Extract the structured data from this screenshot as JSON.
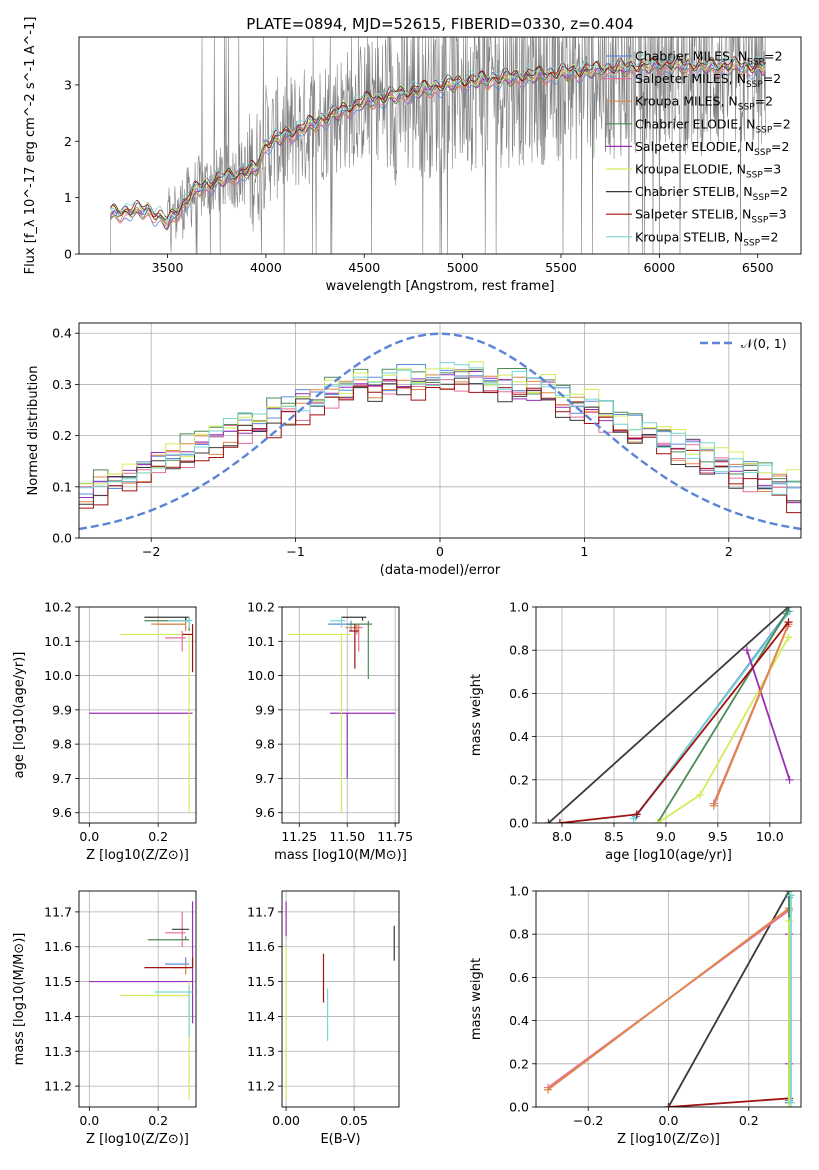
{
  "figure_title": "PLATE=0894, MJD=52615, FIBERID=0330, z=0.404",
  "colors": {
    "Chabrier MILES": "#5b8ddb",
    "Salpeter MILES": "#e86f9a",
    "Kroupa MILES": "#dd8844",
    "Chabrier ELODIE": "#4f8a55",
    "Salpeter ELODIE": "#9a2fb5",
    "Kroupa ELODIE": "#d3ec5a",
    "Chabrier STELIB": "#3a3a3a",
    "Salpeter STELIB": "#a01111",
    "Kroupa STELIB": "#76d6d4",
    "data": "#808080",
    "normal": "#5b84d6",
    "grid": "#b0b0b0"
  },
  "chart_data": [
    {
      "id": "spectrum",
      "type": "line",
      "title": "PLATE=0894, MJD=52615, FIBERID=0330, z=0.404",
      "xlabel": "wavelength [Angstrom, rest frame]",
      "ylabel": "Flux [f_λ 10^-17 erg cm^-2 s^-1 A^-1]",
      "xlim": [
        3050,
        6720
      ],
      "ylim": [
        0,
        3.85
      ],
      "xticks": [
        3500,
        4000,
        4500,
        5000,
        5500,
        6000,
        6500
      ],
      "yticks": [
        0,
        1,
        2,
        3
      ],
      "grid": false,
      "legend_position": "top-right",
      "data_range": [
        3210,
        6540
      ],
      "series": [
        {
          "name": "Chabrier MILES, N_SSP=2",
          "lab": "Chabrier MILES, N",
          "n": "2"
        },
        {
          "name": "Salpeter MILES, N_SSP=2",
          "lab": "Salpeter MILES, N",
          "n": "2"
        },
        {
          "name": "Kroupa MILES, N_SSP=2",
          "lab": "Kroupa MILES, N",
          "n": "2"
        },
        {
          "name": "Chabrier ELODIE, N_SSP=2",
          "lab": "Chabrier ELODIE, N",
          "n": "2"
        },
        {
          "name": "Salpeter ELODIE, N_SSP=2",
          "lab": "Salpeter ELODIE, N",
          "n": "2"
        },
        {
          "name": "Kroupa ELODIE, N_SSP=3",
          "lab": "Kroupa ELODIE, N",
          "n": "3"
        },
        {
          "name": "Chabrier STELIB, N_SSP=2",
          "lab": "Chabrier STELIB, N",
          "n": "2"
        },
        {
          "name": "Salpeter STELIB, N_SSP=3",
          "lab": "Salpeter STELIB, N",
          "n": "3"
        },
        {
          "name": "Kroupa STELIB, N_SSP=2",
          "lab": "Kroupa STELIB, N",
          "n": "2"
        }
      ],
      "model_continuum": [
        [
          3210,
          0.72
        ],
        [
          3400,
          0.78
        ],
        [
          3500,
          0.55
        ],
        [
          3600,
          0.95
        ],
        [
          3650,
          1.15
        ],
        [
          3800,
          1.35
        ],
        [
          3950,
          1.5
        ],
        [
          4000,
          1.95
        ],
        [
          4200,
          2.25
        ],
        [
          4500,
          2.7
        ],
        [
          5000,
          3.05
        ],
        [
          5500,
          3.2
        ],
        [
          6000,
          3.35
        ],
        [
          6540,
          3.3
        ]
      ]
    },
    {
      "id": "residuals",
      "type": "area",
      "xlabel": "(data-model)/error",
      "ylabel": "Normed distribution",
      "xlim": [
        -2.5,
        2.5
      ],
      "ylim": [
        0,
        0.42
      ],
      "xticks": [
        -2,
        -1,
        0,
        1,
        2
      ],
      "yticks": [
        0.0,
        0.1,
        0.2,
        0.3,
        0.4
      ],
      "grid": true,
      "legend_position": "top-right",
      "legend_label": "𝒩(0, 1)",
      "bin_width": 0.1,
      "series_base_amplitude": 0.31,
      "series_offsets": [
        0.01,
        -0.005,
        0.0,
        0.015,
        0.005,
        0.02,
        -0.01,
        -0.015,
        0.012
      ]
    },
    {
      "id": "age_vs_Z",
      "type": "scatter",
      "xlabel": "Z [log10(Z/Z⊙)]",
      "ylabel": "age  [log10(age/yr)]",
      "xlim": [
        -0.03,
        0.31
      ],
      "ylim": [
        9.57,
        10.2
      ],
      "xticks": [
        0.0,
        0.2
      ],
      "yticks": [
        9.6,
        9.7,
        9.8,
        9.9,
        10.0,
        10.1,
        10.2
      ],
      "grid": true,
      "errorbars": [
        {
          "series": 0,
          "x": 0.28,
          "xerr": [
            0.08,
            0.0
          ],
          "y": 10.15,
          "yerr": [
            0.0,
            0.02
          ]
        },
        {
          "series": 1,
          "x": 0.27,
          "xerr": [
            0.05,
            0.01
          ],
          "y": 10.11,
          "yerr": [
            0.04,
            0.02
          ]
        },
        {
          "series": 2,
          "x": 0.28,
          "xerr": [
            0.1,
            0.0
          ],
          "y": 10.15,
          "yerr": [
            0.02,
            0.01
          ]
        },
        {
          "series": 3,
          "x": 0.29,
          "xerr": [
            0.13,
            0.0
          ],
          "y": 10.16,
          "yerr": [
            0.03,
            0.01
          ]
        },
        {
          "series": 4,
          "x": 0.0,
          "xerr": [
            0.0,
            0.3
          ],
          "y": 9.89,
          "yerr": [
            0.0,
            0.0
          ]
        },
        {
          "series": 5,
          "x": 0.29,
          "xerr": [
            0.2,
            0.0
          ],
          "y": 10.12,
          "yerr": [
            0.52,
            0.0
          ]
        },
        {
          "series": 6,
          "x": 0.28,
          "xerr": [
            0.12,
            0.01
          ],
          "y": 10.17,
          "yerr": [
            0.01,
            0.0
          ]
        },
        {
          "series": 7,
          "x": 0.3,
          "xerr": [
            0.03,
            0.0
          ],
          "y": 10.12,
          "yerr": [
            0.11,
            0.03
          ]
        },
        {
          "series": 8,
          "x": 0.29,
          "xerr": [
            0.06,
            0.01
          ],
          "y": 10.16,
          "yerr": [
            0.02,
            0.01
          ]
        }
      ]
    },
    {
      "id": "age_vs_mass",
      "type": "scatter",
      "xlabel": "mass [log10(M/M⊙)]",
      "ylabel": "",
      "xlim": [
        11.16,
        11.77
      ],
      "ylim": [
        9.57,
        10.2
      ],
      "xticks": [
        11.25,
        11.5,
        11.75
      ],
      "yticks": [
        9.6,
        9.7,
        9.8,
        9.9,
        10.0,
        10.1,
        10.2
      ],
      "grid": true,
      "errorbars": [
        {
          "series": 0,
          "x": 11.52,
          "xerr": [
            0.12,
            0.02
          ],
          "y": 10.15,
          "yerr": [
            0.02,
            0.01
          ]
        },
        {
          "series": 1,
          "x": 11.56,
          "xerr": [
            0.05,
            0.02
          ],
          "y": 10.14,
          "yerr": [
            0.07,
            0.01
          ]
        },
        {
          "series": 2,
          "x": 11.55,
          "xerr": [
            0.06,
            0.01
          ],
          "y": 10.14,
          "yerr": [
            0.02,
            0.01
          ]
        },
        {
          "series": 3,
          "x": 11.61,
          "xerr": [
            0.11,
            0.02
          ],
          "y": 10.15,
          "yerr": [
            0.16,
            0.01
          ]
        },
        {
          "series": 4,
          "x": 11.5,
          "xerr": [
            0.09,
            0.25
          ],
          "y": 9.89,
          "yerr": [
            0.19,
            0.0
          ]
        },
        {
          "series": 5,
          "x": 11.47,
          "xerr": [
            0.28,
            0.05
          ],
          "y": 10.12,
          "yerr": [
            0.52,
            0.0
          ]
        },
        {
          "series": 6,
          "x": 11.58,
          "xerr": [
            0.11,
            0.02
          ],
          "y": 10.17,
          "yerr": [
            0.01,
            0.0
          ]
        },
        {
          "series": 7,
          "x": 11.54,
          "xerr": [
            0.03,
            0.02
          ],
          "y": 10.13,
          "yerr": [
            0.11,
            0.02
          ]
        },
        {
          "series": 8,
          "x": 11.47,
          "xerr": [
            0.06,
            0.02
          ],
          "y": 10.16,
          "yerr": [
            0.02,
            0.01
          ]
        }
      ]
    },
    {
      "id": "massweight_vs_age",
      "type": "line",
      "xlabel": "age  [log10(age/yr)]",
      "ylabel": "mass weight",
      "xlim": [
        7.75,
        10.3
      ],
      "ylim": [
        0,
        1
      ],
      "xticks": [
        8.0,
        8.5,
        9.0,
        9.5,
        10.0
      ],
      "yticks": [
        0.0,
        0.2,
        0.4,
        0.6,
        0.8,
        1.0
      ],
      "grid": true,
      "lines": [
        {
          "series": 6,
          "x": [
            7.87,
            10.18
          ],
          "y": [
            0.0,
            1.0
          ]
        },
        {
          "series": 0,
          "x": [
            8.71,
            10.16
          ],
          "y": [
            0.03,
            0.97
          ]
        },
        {
          "series": 8,
          "x": [
            8.69,
            10.19
          ],
          "y": [
            0.02,
            0.98
          ]
        },
        {
          "series": 3,
          "x": [
            8.92,
            10.17
          ],
          "y": [
            0.0,
            0.98
          ]
        },
        {
          "series": 5,
          "x": [
            8.92,
            9.33,
            10.18
          ],
          "y": [
            0.0,
            0.13,
            0.86
          ]
        },
        {
          "series": 4,
          "x": [
            9.78,
            10.19
          ],
          "y": [
            0.8,
            0.2
          ]
        },
        {
          "series": 1,
          "x": [
            9.46,
            10.17
          ],
          "y": [
            0.09,
            0.91
          ]
        },
        {
          "series": 2,
          "x": [
            9.46,
            10.18
          ],
          "y": [
            0.08,
            0.92
          ]
        },
        {
          "series": 7,
          "x": [
            7.98,
            8.72,
            10.18
          ],
          "y": [
            0.0,
            0.04,
            0.93
          ]
        }
      ]
    },
    {
      "id": "mass_vs_Z",
      "type": "scatter",
      "xlabel": "Z [log10(Z/Z⊙)]",
      "ylabel": "mass [log10(M/M⊙)]",
      "xlim": [
        -0.03,
        0.31
      ],
      "ylim": [
        11.14,
        11.76
      ],
      "xticks": [
        0.0,
        0.2
      ],
      "yticks": [
        11.2,
        11.3,
        11.4,
        11.5,
        11.6,
        11.7
      ],
      "grid": true,
      "errorbars": [
        {
          "series": 0,
          "x": 0.28,
          "xerr": [
            0.06,
            0.01
          ],
          "y": 11.55,
          "yerr": [
            0.0,
            0.02
          ]
        },
        {
          "series": 1,
          "x": 0.27,
          "xerr": [
            0.05,
            0.01
          ],
          "y": 11.64,
          "yerr": [
            0.04,
            0.06
          ]
        },
        {
          "series": 2,
          "x": 0.28,
          "xerr": [
            0.04,
            0.01
          ],
          "y": 11.54,
          "yerr": [
            0.02,
            0.01
          ]
        },
        {
          "series": 3,
          "x": 0.28,
          "xerr": [
            0.11,
            0.01
          ],
          "y": 11.62,
          "yerr": [
            0.0,
            0.01
          ]
        },
        {
          "series": 4,
          "x": 0.3,
          "xerr": [
            0.3,
            0.0
          ],
          "y": 11.5,
          "yerr": [
            0.12,
            0.23
          ]
        },
        {
          "series": 5,
          "x": 0.29,
          "xerr": [
            0.2,
            0.0
          ],
          "y": 11.46,
          "yerr": [
            0.3,
            0.04
          ]
        },
        {
          "series": 6,
          "x": 0.28,
          "xerr": [
            0.04,
            0.01
          ],
          "y": 11.65,
          "yerr": [
            0.0,
            0.0
          ]
        },
        {
          "series": 7,
          "x": 0.3,
          "xerr": [
            0.14,
            0.0
          ],
          "y": 11.54,
          "yerr": [
            0.0,
            0.03
          ]
        },
        {
          "series": 8,
          "x": 0.29,
          "xerr": [
            0.1,
            0.01
          ],
          "y": 11.47,
          "yerr": [
            0.13,
            0.02
          ]
        }
      ]
    },
    {
      "id": "mass_vs_ebv",
      "type": "scatter",
      "xlabel": "E(B-V)",
      "ylabel": "",
      "xlim": [
        -0.003,
        0.083
      ],
      "ylim": [
        11.14,
        11.76
      ],
      "xticks": [
        0.0,
        0.05
      ],
      "yticks": [
        11.2,
        11.3,
        11.4,
        11.5,
        11.6,
        11.7
      ],
      "grid": true,
      "errorbars": [
        {
          "series": 4,
          "x": 0.0,
          "xerr": [
            0,
            0
          ],
          "y": 11.68,
          "yerr": [
            0.05,
            0.05
          ]
        },
        {
          "series": 5,
          "x": 0.0,
          "xerr": [
            0,
            0
          ],
          "y": 11.4,
          "yerr": [
            0.24,
            0.2
          ]
        },
        {
          "series": 7,
          "x": 0.0275,
          "xerr": [
            0,
            0
          ],
          "y": 11.51,
          "yerr": [
            0.07,
            0.07
          ]
        },
        {
          "series": 8,
          "x": 0.0305,
          "xerr": [
            0,
            0
          ],
          "y": 11.4,
          "yerr": [
            0.07,
            0.08
          ]
        },
        {
          "series": 6,
          "x": 0.0795,
          "xerr": [
            0,
            0
          ],
          "y": 11.61,
          "yerr": [
            0.05,
            0.05
          ]
        }
      ]
    },
    {
      "id": "massweight_vs_Z",
      "type": "line",
      "xlabel": "Z [log10(Z/Z⊙)]",
      "ylabel": "mass weight",
      "xlim": [
        -0.33,
        0.33
      ],
      "ylim": [
        0,
        1
      ],
      "xticks": [
        -0.2,
        0.0,
        0.2
      ],
      "yticks": [
        0.0,
        0.2,
        0.4,
        0.6,
        0.8,
        1.0
      ],
      "grid": true,
      "lines": [
        {
          "series": 6,
          "x": [
            0.0,
            0.3
          ],
          "y": [
            0.0,
            1.0
          ]
        },
        {
          "series": 1,
          "x": [
            -0.3,
            0.3
          ],
          "y": [
            0.09,
            0.91
          ]
        },
        {
          "series": 2,
          "x": [
            -0.3,
            0.3
          ],
          "y": [
            0.08,
            0.92
          ]
        },
        {
          "series": 7,
          "x": [
            0.0,
            0.3
          ],
          "y": [
            0.0,
            0.04
          ]
        },
        {
          "series": 0,
          "x": [
            0.3,
            0.3
          ],
          "y": [
            0.03,
            0.97
          ]
        },
        {
          "series": 3,
          "x": [
            0.3,
            0.3
          ],
          "y": [
            0.02,
            0.98
          ]
        },
        {
          "series": 4,
          "x": [
            0.3,
            0.3
          ],
          "y": [
            0.2,
            0.8
          ]
        },
        {
          "series": 5,
          "x": [
            0.3,
            0.3
          ],
          "y": [
            0.0,
            0.86
          ]
        },
        {
          "series": 8,
          "x": [
            0.305,
            0.305
          ],
          "y": [
            0.02,
            0.98
          ]
        }
      ]
    }
  ]
}
